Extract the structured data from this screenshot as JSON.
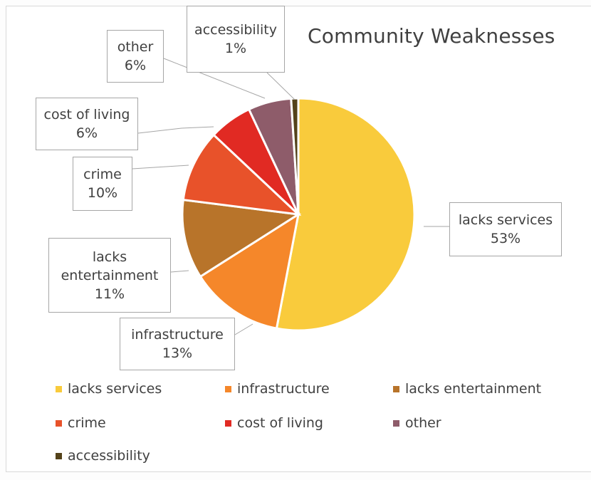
{
  "chart_data": {
    "type": "pie",
    "title": "Community Weaknesses",
    "categories": [
      "lacks services",
      "infrastructure",
      "lacks entertainment",
      "crime",
      "cost of living",
      "other",
      "accessibility"
    ],
    "values": [
      53,
      13,
      11,
      10,
      6,
      6,
      1
    ],
    "value_labels": [
      "53%",
      "13%",
      "11%",
      "10%",
      "6%",
      "6%",
      "1%"
    ],
    "colors": [
      "#F9CB3C",
      "#F5872A",
      "#B8742A",
      "#E8522A",
      "#E12A23",
      "#8E5C6A",
      "#54421A"
    ],
    "legend_position": "bottom",
    "data_labels": "callout boxes with leader lines"
  }
}
